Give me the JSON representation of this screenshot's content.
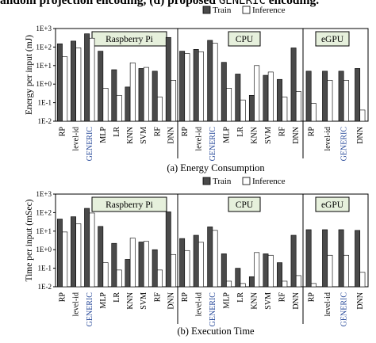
{
  "header": {
    "part1": "andom projection encoding, (d) proposed ",
    "mono": "GENERIC",
    "part2": " encoding."
  },
  "colors": {
    "train": "#4a4a4a",
    "inference": "#ffffff",
    "group_box": "#e6f0dc",
    "accent_label": "#2b4c9b"
  },
  "chart_data": [
    {
      "type": "bar",
      "caption": "(a) Energy Consumption",
      "ylabel": "Energy per input (mJ)",
      "yscale": "log",
      "ylim": [
        0.01,
        1000
      ],
      "yticks": [
        "1E-2",
        "1E-1",
        "1E+0",
        "1E+1",
        "1E+2",
        "1E+3"
      ],
      "legend": [
        "Train",
        "Inference"
      ],
      "groups": [
        {
          "name": "Raspberry Pi",
          "categories": [
            "RP",
            "level-id",
            "GENERIC",
            "MLP",
            "LR",
            "KNN",
            "SVM",
            "RF",
            "DNN"
          ],
          "train": [
            150,
            210,
            520,
            60,
            6,
            0.7,
            7,
            5,
            330
          ],
          "inference": [
            30,
            90,
            300,
            0.6,
            0.25,
            14,
            8,
            0.2,
            1.6
          ]
        },
        {
          "name": "CPU",
          "categories": [
            "RP",
            "level-id",
            "GENERIC",
            "MLP",
            "LR",
            "KNN",
            "SVM",
            "RF",
            "DNN"
          ],
          "train": [
            60,
            75,
            230,
            15,
            3.5,
            0.25,
            3,
            1.8,
            90
          ],
          "inference": [
            45,
            55,
            160,
            0.6,
            0.14,
            10,
            4.5,
            0.2,
            0.4
          ]
        },
        {
          "name": "eGPU",
          "categories": [
            "RP",
            "level-id",
            "GENERIC"
          ],
          "extra_category": "DNN",
          "train": [
            5,
            5,
            5,
            7
          ],
          "inference": [
            0.09,
            1.6,
            1.6,
            0.04
          ]
        }
      ]
    },
    {
      "type": "bar",
      "caption": "(b) Execution Time",
      "ylabel": "Time per input (mSec)",
      "yscale": "log",
      "ylim": [
        0.01,
        1000
      ],
      "yticks": [
        "1E-2",
        "1E-1",
        "1E+0",
        "1E+1",
        "1E+2",
        "1E+3"
      ],
      "legend": [
        "Train",
        "Inference"
      ],
      "groups": [
        {
          "name": "Raspberry Pi",
          "categories": [
            "RP",
            "level-id",
            "GENERIC",
            "MLP",
            "LR",
            "KNN",
            "SVM",
            "RF",
            "DNN"
          ],
          "train": [
            45,
            60,
            170,
            18,
            2.2,
            0.3,
            2.6,
            1,
            110
          ],
          "inference": [
            9,
            25,
            95,
            0.2,
            0.08,
            4.2,
            2.8,
            0.08,
            0.55
          ]
        },
        {
          "name": "CPU",
          "categories": [
            "RP",
            "level-id",
            "GENERIC",
            "MLP",
            "LR",
            "KNN",
            "SVM",
            "RF",
            "DNN"
          ],
          "train": [
            4,
            6,
            17,
            0.6,
            0.1,
            0.035,
            0.6,
            0.2,
            6
          ],
          "inference": [
            0.9,
            2.5,
            11,
            0.02,
            0.015,
            0.7,
            0.5,
            0.02,
            0.04
          ]
        },
        {
          "name": "eGPU",
          "categories": [
            "RP",
            "level-id",
            "GENERIC"
          ],
          "extra_category": "DNN",
          "train": [
            12,
            12,
            12,
            11
          ],
          "inference": [
            0.015,
            0.5,
            0.5,
            0.06
          ]
        }
      ]
    }
  ]
}
